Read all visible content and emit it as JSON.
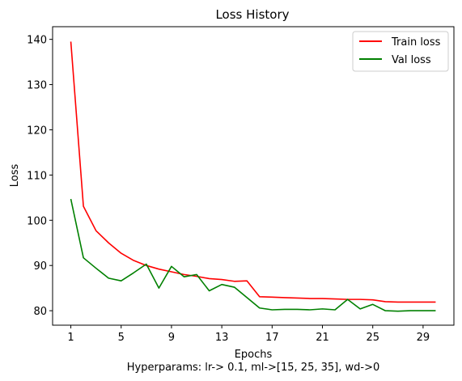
{
  "chart_data": {
    "type": "line",
    "title": "Loss History",
    "xlabel": "Epochs",
    "ylabel": "Loss",
    "caption": "Hyperparams: lr-> 0.1, ml->[15, 25, 35], wd->0",
    "x": [
      1,
      2,
      3,
      4,
      5,
      6,
      7,
      8,
      9,
      10,
      11,
      12,
      13,
      14,
      15,
      16,
      17,
      18,
      19,
      20,
      21,
      22,
      23,
      24,
      25,
      26,
      27,
      28,
      29,
      30
    ],
    "xticks": [
      1,
      5,
      9,
      13,
      17,
      21,
      25,
      29
    ],
    "yticks": [
      80,
      90,
      100,
      110,
      120,
      130,
      140
    ],
    "xlim": [
      -0.45,
      31.45
    ],
    "ylim": [
      76.8,
      142.8
    ],
    "grid": false,
    "legend_position": "top-right",
    "series": [
      {
        "name": "Train loss",
        "color": "#ff0000",
        "values": [
          139.5,
          103.1,
          97.7,
          95.0,
          92.7,
          91.1,
          90.0,
          89.2,
          88.6,
          88.0,
          87.6,
          87.1,
          86.9,
          86.5,
          86.6,
          83.1,
          83.0,
          82.9,
          82.8,
          82.7,
          82.7,
          82.6,
          82.5,
          82.5,
          82.4,
          82.0,
          81.9,
          81.9,
          81.9,
          81.9
        ]
      },
      {
        "name": "Val loss",
        "color": "#008000",
        "values": [
          104.7,
          91.7,
          89.4,
          87.2,
          86.6,
          88.4,
          90.3,
          85.0,
          89.8,
          87.5,
          88.0,
          84.4,
          85.8,
          85.2,
          82.9,
          80.6,
          80.2,
          80.3,
          80.3,
          80.2,
          80.4,
          80.2,
          82.5,
          80.4,
          81.4,
          80.0,
          79.9,
          80.0,
          80.0,
          80.0
        ]
      }
    ]
  }
}
